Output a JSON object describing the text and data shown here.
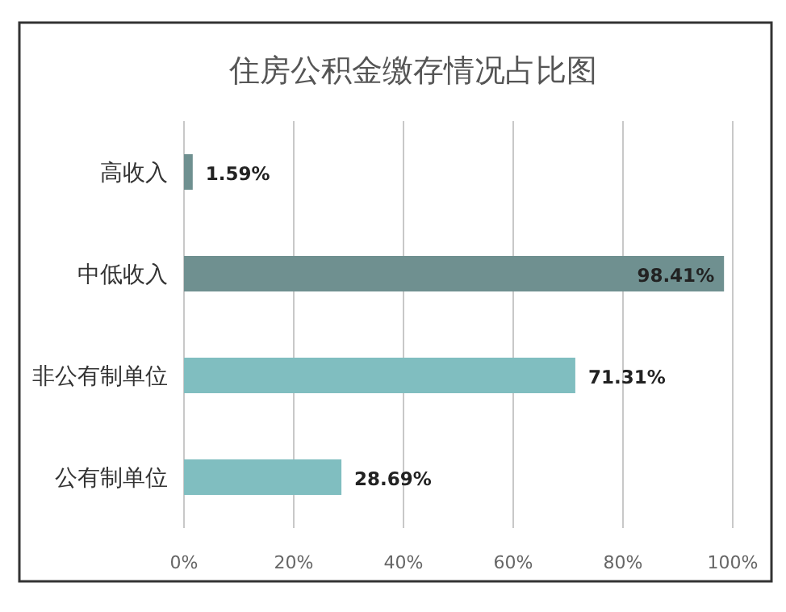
{
  "chart_data": {
    "type": "bar",
    "orientation": "horizontal",
    "title": "住房公积金缴存情况占比图",
    "categories": [
      "高收入",
      "中低收入",
      "非公有制单位",
      "公有制单位"
    ],
    "values": [
      1.59,
      98.41,
      71.31,
      28.69
    ],
    "colors": [
      "#6f9090",
      "#6f9090",
      "#80bec0",
      "#80bec0"
    ],
    "value_labels": [
      "1.59%",
      "98.41%",
      "71.31%",
      "28.69%"
    ],
    "xlim": [
      0,
      100
    ],
    "xticks": [
      {
        "value": 0,
        "label": "0%"
      },
      {
        "value": 20,
        "label": "20%"
      },
      {
        "value": 40,
        "label": "40%"
      },
      {
        "value": 60,
        "label": "60%"
      },
      {
        "value": 80,
        "label": "80%"
      },
      {
        "value": 100,
        "label": "100%"
      }
    ],
    "grid": "x"
  }
}
